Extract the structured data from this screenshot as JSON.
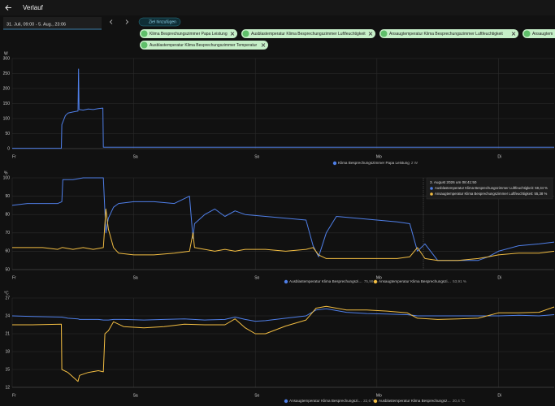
{
  "header": {
    "title": "Verlauf"
  },
  "date_range": "31. Juli, 09:00 - 5. Aug., 23:06",
  "add_target": "Ziel hinzufügen",
  "targets": [
    "Klima Besprechungszimmer Papa Leistung",
    "Ausblastemperatur Klima Besprechungszimmer Luftfeuchtigkeit",
    "Ansaugtemperatur Klima Besprechungszimmer Luftfeuchtigkeit",
    "Ansaugtem",
    "Ausblastemperatur Klima Besprechungszimmer Temperatur"
  ],
  "chart_data": [
    {
      "type": "line",
      "unit": "W",
      "grid": true,
      "xlim": [
        0,
        107
      ],
      "xticks": [
        {
          "value": 0,
          "label": "Fr"
        },
        {
          "value": 24,
          "label": "Sa"
        },
        {
          "value": 48,
          "label": "So"
        },
        {
          "value": 72,
          "label": "Mo"
        },
        {
          "value": 96,
          "label": "Di"
        }
      ],
      "ylim": [
        0,
        300
      ],
      "yticks": [
        0,
        50,
        100,
        150,
        200,
        250,
        300
      ],
      "x": [
        0,
        9.7,
        9.8,
        10.5,
        11,
        12,
        13,
        13.1,
        13.2,
        14,
        15,
        16,
        17,
        17.9,
        18,
        30,
        48,
        72,
        96,
        107
      ],
      "series": [
        {
          "name": "Klima Besprechungszimmer Papa Leistung",
          "current": "2 W",
          "color": "#4f7fe8",
          "values": [
            1,
            1,
            80,
            110,
            118,
            122,
            125,
            265,
            130,
            128,
            132,
            130,
            133,
            135,
            5,
            5,
            5,
            5,
            5,
            5
          ]
        }
      ]
    },
    {
      "type": "line",
      "unit": "%",
      "grid": true,
      "xlim": [
        0,
        107
      ],
      "xticks": [
        {
          "value": 0,
          "label": "Fr"
        },
        {
          "value": 24,
          "label": "Sa"
        },
        {
          "value": 48,
          "label": "So"
        },
        {
          "value": 72,
          "label": "Mo"
        },
        {
          "value": 96,
          "label": "Di"
        }
      ],
      "ylim": [
        50,
        100
      ],
      "yticks": [
        50,
        60,
        70,
        80,
        90,
        100
      ],
      "x": [
        0,
        3,
        6,
        9,
        9.8,
        10,
        12,
        14,
        16,
        18,
        18.5,
        19,
        20,
        21,
        24,
        28,
        32,
        35,
        35.7,
        36,
        38,
        40,
        42,
        44,
        46,
        50,
        54,
        58,
        59.4,
        60.5,
        62,
        64,
        68,
        72,
        76,
        78.5,
        80,
        81.5,
        84,
        88,
        92,
        94,
        96,
        100,
        104,
        107
      ],
      "series": [
        {
          "name": "Ausblastemperatur Klima Besprechungszi…",
          "current": "75,99 %",
          "color": "#4f7fe8",
          "values": [
            85,
            86,
            86,
            86,
            87,
            99,
            99,
            100,
            100,
            100,
            70,
            78,
            84,
            86,
            87,
            87,
            86,
            90,
            67,
            75,
            80,
            83,
            79,
            82,
            80,
            79,
            78,
            77,
            63,
            57,
            70,
            79,
            78,
            77,
            76,
            75,
            60,
            64,
            55,
            55,
            55,
            57,
            60,
            63,
            64,
            65
          ]
        },
        {
          "name": "Ansaugtemperatur Klima Besprechungszi…",
          "current": "53,91 %",
          "color": "#f2bd42",
          "values": [
            62,
            62,
            62,
            61,
            62,
            62,
            61,
            62,
            61,
            62,
            83,
            72,
            62,
            59,
            58,
            58,
            59,
            60,
            70,
            62,
            61,
            60,
            61,
            60,
            61,
            61,
            60,
            61,
            62,
            58,
            56,
            56,
            56,
            56,
            56,
            57,
            62,
            56,
            55,
            55,
            56,
            57,
            58,
            59,
            59,
            60
          ]
        }
      ],
      "tooltip": {
        "title": "3. August 2026 um 08:41:50",
        "lines": [
          "Ausblastemperatur Klima Besprechungszimmer Luftfeuchtigkeit: 59,34 %",
          "Ansaugtemperatur Klima Besprechungszimmer Luftfeuchtigkeit: 55,38 %"
        ]
      }
    },
    {
      "type": "line",
      "unit": "°C",
      "grid": true,
      "xlim": [
        0,
        107
      ],
      "xticks": [
        {
          "value": 0,
          "label": "Fr"
        },
        {
          "value": 24,
          "label": "Sa"
        },
        {
          "value": 48,
          "label": "So"
        },
        {
          "value": 72,
          "label": "Mo"
        },
        {
          "value": 96,
          "label": "Di"
        }
      ],
      "ylim": [
        12,
        27
      ],
      "yticks": [
        12,
        15,
        18,
        21,
        24,
        27
      ],
      "x": [
        0,
        4,
        9.7,
        9.8,
        11,
        13,
        13.3,
        15,
        17,
        18,
        18.3,
        19,
        20,
        22,
        26,
        30,
        34,
        38,
        42,
        44,
        46,
        48,
        50,
        54,
        58,
        60,
        62,
        66,
        70,
        74,
        78,
        80,
        84,
        88,
        92,
        96,
        100,
        104,
        107
      ],
      "series": [
        {
          "name": "Ansaugtemperatur Klima Besprechungszi…",
          "current": "22,6 °C",
          "color": "#4f7fe8",
          "values": [
            24,
            23.9,
            23.8,
            23.8,
            23.6,
            23.5,
            23.4,
            23.4,
            23.4,
            23.3,
            23.3,
            23.3,
            23.4,
            23.4,
            23.3,
            23.4,
            23.5,
            23.3,
            23.4,
            23.8,
            23.4,
            23.1,
            23.2,
            23.6,
            24,
            25,
            25.2,
            24.6,
            24.4,
            24.3,
            24.2,
            24,
            24,
            24,
            24,
            24,
            24.1,
            24,
            24.2
          ]
        },
        {
          "name": "Ausblastemperatur Klima Besprechungsz…",
          "current": "20,4 °C",
          "color": "#f2bd42",
          "values": [
            22.5,
            22.5,
            22.6,
            15,
            14.5,
            13,
            14,
            14.5,
            14.8,
            14.6,
            21,
            21.5,
            23,
            22.2,
            22,
            22.2,
            22.6,
            22.5,
            22.5,
            23.5,
            22,
            21,
            21,
            22.3,
            23.3,
            25.3,
            25.6,
            25,
            25,
            24.8,
            24.5,
            23.6,
            23.4,
            23.5,
            23.6,
            24.5,
            24.5,
            24.6,
            25.5
          ]
        }
      ]
    }
  ]
}
